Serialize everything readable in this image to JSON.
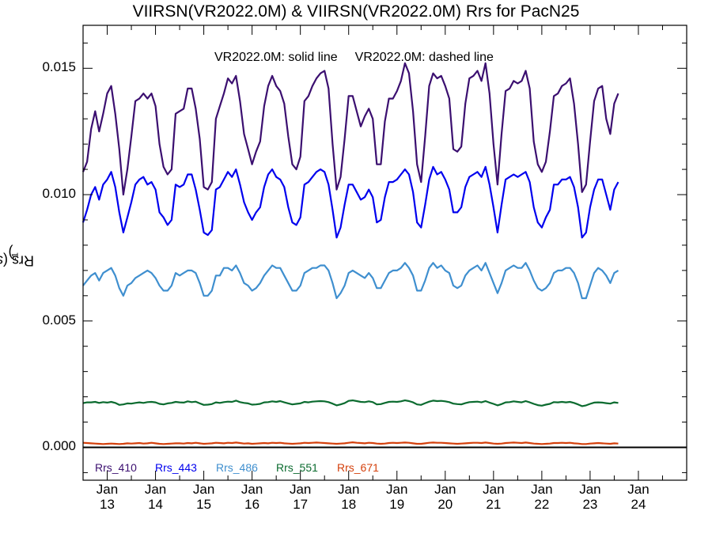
{
  "title": "VIIRSN(VR2022.0M) & VIIRSN(VR2022.0M)  Rrs for PacN25",
  "annotation": {
    "solid": "VR2022.0M: solid line",
    "dashed": "VR2022.0M: dashed line"
  },
  "colors": {
    "background": "#ffffff",
    "axes": "#000000",
    "zero_line": "#000000"
  },
  "chart_data": {
    "type": "line",
    "title": "VIIRSN(VR2022.0M) & VIIRSN(VR2022.0M)  Rrs for PacN25",
    "ylabel": "Rrs (str",
    "ylabel_superscript": "-1",
    "ylabel_suffix": ")",
    "ylim": [
      -0.0013,
      0.0167
    ],
    "yticks": [
      "0.000",
      "0.005",
      "0.010",
      "0.015"
    ],
    "ytick_values": [
      0.0,
      0.005,
      0.01,
      0.015
    ],
    "xlim": [
      2012.5,
      2025.0
    ],
    "xticks": [
      {
        "year": 2013,
        "month": "Jan",
        "yy": "13"
      },
      {
        "year": 2014,
        "month": "Jan",
        "yy": "14"
      },
      {
        "year": 2015,
        "month": "Jan",
        "yy": "15"
      },
      {
        "year": 2016,
        "month": "Jan",
        "yy": "16"
      },
      {
        "year": 2017,
        "month": "Jan",
        "yy": "17"
      },
      {
        "year": 2018,
        "month": "Jan",
        "yy": "18"
      },
      {
        "year": 2019,
        "month": "Jan",
        "yy": "19"
      },
      {
        "year": 2020,
        "month": "Jan",
        "yy": "20"
      },
      {
        "year": 2021,
        "month": "Jan",
        "yy": "21"
      },
      {
        "year": 2022,
        "month": "Jan",
        "yy": "22"
      },
      {
        "year": 2023,
        "month": "Jan",
        "yy": "23"
      },
      {
        "year": 2024,
        "month": "Jan",
        "yy": "24"
      }
    ],
    "x_start": 2012.5,
    "x_step_months": 1,
    "series": [
      {
        "name": "Rrs_410",
        "color": "#3b0f70",
        "values": [
          0.0109,
          0.0113,
          0.0126,
          0.0133,
          0.0125,
          0.0132,
          0.014,
          0.0143,
          0.0132,
          0.0118,
          0.01,
          0.011,
          0.0123,
          0.0137,
          0.0138,
          0.014,
          0.0138,
          0.014,
          0.0135,
          0.012,
          0.0111,
          0.0108,
          0.011,
          0.0132,
          0.0133,
          0.0134,
          0.0142,
          0.0142,
          0.0134,
          0.0122,
          0.0103,
          0.0102,
          0.0105,
          0.013,
          0.0135,
          0.014,
          0.0146,
          0.0144,
          0.0147,
          0.0137,
          0.0124,
          0.0118,
          0.0112,
          0.0117,
          0.0121,
          0.0135,
          0.0143,
          0.0147,
          0.0143,
          0.0141,
          0.0136,
          0.0123,
          0.0112,
          0.011,
          0.0115,
          0.0137,
          0.0139,
          0.0143,
          0.0146,
          0.0148,
          0.0149,
          0.0142,
          0.012,
          0.0102,
          0.0107,
          0.0122,
          0.0139,
          0.0139,
          0.0133,
          0.0127,
          0.0131,
          0.0134,
          0.013,
          0.0112,
          0.0112,
          0.0129,
          0.0138,
          0.0138,
          0.0141,
          0.0145,
          0.0152,
          0.0148,
          0.0133,
          0.0112,
          0.0105,
          0.0123,
          0.0143,
          0.0148,
          0.0146,
          0.0147,
          0.0143,
          0.0138,
          0.0118,
          0.0117,
          0.0119,
          0.0136,
          0.0146,
          0.0147,
          0.0149,
          0.0145,
          0.0152,
          0.014,
          0.012,
          0.0104,
          0.0124,
          0.0141,
          0.0142,
          0.0145,
          0.0144,
          0.0145,
          0.0149,
          0.0142,
          0.0121,
          0.0112,
          0.0109,
          0.0113,
          0.0125,
          0.0139,
          0.014,
          0.0143,
          0.0144,
          0.0146,
          0.0136,
          0.012,
          0.0101,
          0.0104,
          0.0121,
          0.0137,
          0.0142,
          0.0143,
          0.013,
          0.0124,
          0.0136,
          0.014
        ]
      },
      {
        "name": "Rrs_443",
        "color": "#0000ee",
        "values": [
          0.0089,
          0.0094,
          0.01,
          0.0103,
          0.0098,
          0.0104,
          0.0106,
          0.0109,
          0.0103,
          0.0093,
          0.0085,
          0.0091,
          0.0097,
          0.0104,
          0.0106,
          0.0107,
          0.0104,
          0.0105,
          0.0102,
          0.0093,
          0.0091,
          0.0088,
          0.009,
          0.0104,
          0.0103,
          0.0104,
          0.0108,
          0.0108,
          0.0102,
          0.0094,
          0.0085,
          0.0084,
          0.0086,
          0.0102,
          0.0103,
          0.0106,
          0.0109,
          0.0107,
          0.011,
          0.0104,
          0.0097,
          0.0093,
          0.009,
          0.0093,
          0.0095,
          0.0103,
          0.0108,
          0.011,
          0.0107,
          0.0106,
          0.0103,
          0.0095,
          0.0089,
          0.0088,
          0.0091,
          0.0104,
          0.0105,
          0.0107,
          0.0109,
          0.011,
          0.0109,
          0.0104,
          0.0094,
          0.0083,
          0.0087,
          0.0096,
          0.0104,
          0.0104,
          0.0101,
          0.0098,
          0.0099,
          0.0102,
          0.0099,
          0.0089,
          0.009,
          0.0099,
          0.0105,
          0.0105,
          0.0106,
          0.0108,
          0.011,
          0.0108,
          0.0101,
          0.0089,
          0.0087,
          0.0096,
          0.0106,
          0.0111,
          0.0108,
          0.0109,
          0.0106,
          0.0102,
          0.0093,
          0.0093,
          0.0095,
          0.0103,
          0.0107,
          0.0108,
          0.0109,
          0.0107,
          0.0111,
          0.0104,
          0.0095,
          0.0085,
          0.0096,
          0.0106,
          0.0107,
          0.0108,
          0.0107,
          0.0108,
          0.0109,
          0.0105,
          0.0095,
          0.0089,
          0.0087,
          0.0091,
          0.0094,
          0.0104,
          0.0104,
          0.0106,
          0.0106,
          0.0107,
          0.0103,
          0.0095,
          0.0083,
          0.0085,
          0.0095,
          0.0102,
          0.0106,
          0.0106,
          0.01,
          0.0094,
          0.0102,
          0.0105
        ]
      },
      {
        "name": "Rrs_486",
        "color": "#3f8fcf",
        "values": [
          0.0064,
          0.0066,
          0.0068,
          0.0069,
          0.0066,
          0.0069,
          0.007,
          0.0071,
          0.0068,
          0.0063,
          0.006,
          0.0064,
          0.0065,
          0.0067,
          0.0068,
          0.0069,
          0.007,
          0.0069,
          0.0067,
          0.0064,
          0.0062,
          0.0062,
          0.0064,
          0.0069,
          0.0068,
          0.0069,
          0.007,
          0.007,
          0.0069,
          0.0065,
          0.006,
          0.006,
          0.0062,
          0.0068,
          0.0068,
          0.0071,
          0.0071,
          0.007,
          0.0072,
          0.0069,
          0.0065,
          0.0064,
          0.0062,
          0.0063,
          0.0065,
          0.0068,
          0.007,
          0.0072,
          0.0071,
          0.0071,
          0.0068,
          0.0065,
          0.0062,
          0.0062,
          0.0064,
          0.0069,
          0.007,
          0.0071,
          0.0071,
          0.0072,
          0.0072,
          0.007,
          0.0065,
          0.0059,
          0.0061,
          0.0064,
          0.0069,
          0.007,
          0.0069,
          0.0068,
          0.0067,
          0.0069,
          0.0067,
          0.0063,
          0.0063,
          0.0066,
          0.0069,
          0.007,
          0.007,
          0.0071,
          0.0073,
          0.0071,
          0.0068,
          0.0062,
          0.0062,
          0.0066,
          0.0071,
          0.0073,
          0.0071,
          0.0072,
          0.007,
          0.0069,
          0.0064,
          0.0063,
          0.0064,
          0.0068,
          0.007,
          0.0071,
          0.0072,
          0.007,
          0.0073,
          0.0069,
          0.0065,
          0.0061,
          0.0065,
          0.007,
          0.0071,
          0.0072,
          0.0071,
          0.0071,
          0.0073,
          0.007,
          0.0066,
          0.0063,
          0.0062,
          0.0063,
          0.0065,
          0.0069,
          0.007,
          0.007,
          0.0071,
          0.0071,
          0.0069,
          0.0065,
          0.0059,
          0.0059,
          0.0064,
          0.0069,
          0.0071,
          0.007,
          0.0068,
          0.0065,
          0.0069,
          0.007
        ]
      },
      {
        "name": "Rrs_551",
        "color": "#0b6b2f",
        "values": [
          0.00175,
          0.00178,
          0.00178,
          0.0018,
          0.00176,
          0.00179,
          0.00177,
          0.0018,
          0.00176,
          0.00168,
          0.0017,
          0.00174,
          0.00173,
          0.00176,
          0.00178,
          0.00176,
          0.00179,
          0.0018,
          0.00178,
          0.00172,
          0.0017,
          0.00174,
          0.00176,
          0.0018,
          0.00178,
          0.00177,
          0.00182,
          0.00179,
          0.00181,
          0.00174,
          0.00168,
          0.00169,
          0.00171,
          0.00178,
          0.00176,
          0.00179,
          0.00181,
          0.0018,
          0.00185,
          0.00179,
          0.00176,
          0.00174,
          0.00169,
          0.0017,
          0.00172,
          0.00178,
          0.00179,
          0.00182,
          0.0018,
          0.00183,
          0.00178,
          0.00174,
          0.0017,
          0.00172,
          0.00174,
          0.0018,
          0.00178,
          0.00181,
          0.00182,
          0.00183,
          0.00182,
          0.00179,
          0.00173,
          0.00166,
          0.0017,
          0.00175,
          0.00184,
          0.00186,
          0.00183,
          0.0018,
          0.00179,
          0.00182,
          0.00179,
          0.0017,
          0.00171,
          0.00176,
          0.0018,
          0.00181,
          0.0018,
          0.00182,
          0.00186,
          0.00183,
          0.00178,
          0.0017,
          0.00168,
          0.00175,
          0.00181,
          0.00185,
          0.00183,
          0.00184,
          0.00182,
          0.00179,
          0.00173,
          0.00171,
          0.0017,
          0.00175,
          0.00179,
          0.0018,
          0.00181,
          0.00178,
          0.00183,
          0.00177,
          0.00172,
          0.00166,
          0.00171,
          0.00178,
          0.00179,
          0.00182,
          0.0018,
          0.00178,
          0.00183,
          0.00178,
          0.00172,
          0.00167,
          0.00165,
          0.00169,
          0.00172,
          0.00179,
          0.00178,
          0.0018,
          0.00178,
          0.0018,
          0.00176,
          0.0017,
          0.00163,
          0.00166,
          0.00172,
          0.00177,
          0.00178,
          0.00177,
          0.00175,
          0.00173,
          0.00178,
          0.00176
        ]
      },
      {
        "name": "Rrs_671",
        "color": "#d4400c",
        "values": [
          0.00018,
          0.00017,
          0.00016,
          0.00015,
          0.00014,
          0.00013,
          0.00014,
          0.00015,
          0.00014,
          0.00013,
          0.00014,
          0.00016,
          0.00015,
          0.00016,
          0.00017,
          0.00015,
          0.00016,
          0.00018,
          0.00016,
          0.00014,
          0.00013,
          0.00014,
          0.00015,
          0.00016,
          0.00016,
          0.00015,
          0.00017,
          0.00016,
          0.00018,
          0.00016,
          0.00014,
          0.00015,
          0.00016,
          0.00018,
          0.00017,
          0.00016,
          0.00018,
          0.00017,
          0.00019,
          0.00017,
          0.00015,
          0.00016,
          0.00014,
          0.00015,
          0.00016,
          0.00017,
          0.00016,
          0.00018,
          0.00017,
          0.00018,
          0.00016,
          0.00015,
          0.00014,
          0.00015,
          0.00016,
          0.00018,
          0.00017,
          0.00018,
          0.00019,
          0.00018,
          0.00017,
          0.00016,
          0.00015,
          0.00014,
          0.00015,
          0.00016,
          0.00018,
          0.0002,
          0.00018,
          0.00017,
          0.00016,
          0.00018,
          0.00017,
          0.00015,
          0.00014,
          0.00015,
          0.00017,
          0.00018,
          0.00017,
          0.00018,
          0.00019,
          0.00018,
          0.00016,
          0.00014,
          0.00014,
          0.00016,
          0.00018,
          0.00019,
          0.00018,
          0.00018,
          0.00017,
          0.00016,
          0.00015,
          0.00014,
          0.00015,
          0.00016,
          0.00017,
          0.00018,
          0.00018,
          0.00017,
          0.00019,
          0.00017,
          0.00015,
          0.00014,
          0.00015,
          0.00017,
          0.00018,
          0.00019,
          0.00018,
          0.00017,
          0.00019,
          0.00017,
          0.00015,
          0.00014,
          0.00013,
          0.00014,
          0.00015,
          0.00017,
          0.00017,
          0.00018,
          0.00017,
          0.00018,
          0.00016,
          0.00015,
          0.00013,
          0.00013,
          0.00015,
          0.00016,
          0.00017,
          0.00016,
          0.00015,
          0.00014,
          0.00016,
          0.00015
        ]
      }
    ],
    "legend_placement": "bottom-left",
    "grid": false
  }
}
